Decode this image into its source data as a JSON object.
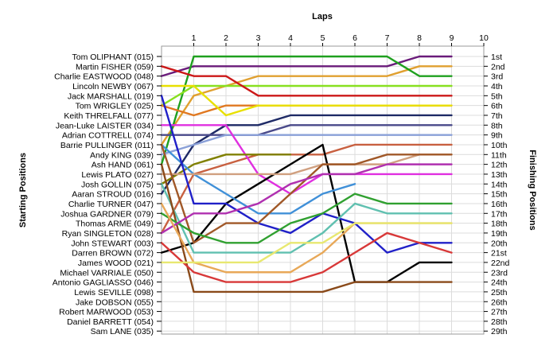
{
  "chart_data": {
    "type": "line",
    "title": "",
    "xlabel": "Laps",
    "ylabel_left": "Starting Positions",
    "ylabel_right": "Finishing Positions",
    "laps": [
      "1",
      "2",
      "3",
      "4",
      "5",
      "6",
      "7",
      "8",
      "9",
      "10"
    ],
    "xlim": [
      0,
      10
    ],
    "ylim": [
      1,
      29
    ],
    "grid": true,
    "starting_grid": [
      "Tom OLIPHANT (015)",
      "Martin FISHER (059)",
      "Charlie EASTWOOD (048)",
      "Lincoln NEWBY (067)",
      "Jack MARSHALL (019)",
      "Tom WRIGLEY (025)",
      "Keith THRELFALL (077)",
      "Jean-Luke LAISTER (034)",
      "Adrian COTTRELL (074)",
      "Barrie PULLINGER (011)",
      "Andy KING (039)",
      "Ash HAND (061)",
      "Lewis PLATO (027)",
      "Josh GOLLIN (075)",
      "Aaran STROUD (016)",
      "Charlie TURNER (047)",
      "Joshua GARDNER (079)",
      "Thomas ARME (049)",
      "Ryan SINGLETON (028)",
      "John STEWART (003)",
      "Darren BROWN (072)",
      "James WOOD (021)",
      "Michael VARRIALE (050)",
      "Antonio GAGLIASSO (046)",
      "Lewis SEVILLE (098)",
      "Jake DOBSON (055)",
      "Robert MARWOOD (053)",
      "Daniel BARRETT (054)",
      "Sam LANE (035)"
    ],
    "finishing_positions": [
      "1st",
      "2nd",
      "3rd",
      "4th",
      "5th",
      "6th",
      "7th",
      "8th",
      "9th",
      "10th",
      "11th",
      "12th",
      "13th",
      "14th",
      "15th",
      "16th",
      "17th",
      "18th",
      "19th",
      "20th",
      "21st",
      "22nd",
      "23rd",
      "24th",
      "25th",
      "26th",
      "27th",
      "28th",
      "29th"
    ],
    "series": [
      {
        "color": "#6a1b7a",
        "values": [
          3,
          2,
          2,
          2,
          2,
          2,
          2,
          2,
          1,
          1
        ]
      },
      {
        "color": "#e0a030",
        "values": [
          10,
          5,
          4,
          3,
          3,
          3,
          3,
          3,
          2,
          2
        ]
      },
      {
        "color": "#1fa01f",
        "values": [
          12,
          1,
          1,
          1,
          1,
          1,
          1,
          1,
          3,
          3
        ]
      },
      {
        "color": "#88e020",
        "values": [
          6,
          4,
          4,
          4,
          4,
          4,
          4,
          4,
          4,
          4
        ]
      },
      {
        "color": "#cc1818",
        "values": [
          2,
          3,
          3,
          5,
          5,
          5,
          5,
          5,
          5,
          5
        ]
      },
      {
        "color": "#e07820",
        "values": [
          6,
          7,
          6,
          6,
          6,
          6,
          6,
          6,
          6,
          6
        ]
      },
      {
        "color": "#e8e000",
        "values": [
          4,
          4,
          7,
          6,
          6,
          6,
          6,
          6,
          6,
          6
        ]
      },
      {
        "color": "#1e2a66",
        "values": [
          15,
          10,
          8,
          8,
          7,
          7,
          7,
          7,
          7,
          7
        ]
      },
      {
        "color": "#4a4a8a",
        "values": [
          9,
          9,
          9,
          9,
          8,
          8,
          8,
          8,
          8,
          8
        ]
      },
      {
        "color": "#8aa0d8",
        "values": [
          11,
          10,
          9,
          9,
          9,
          9,
          9,
          9,
          9,
          9
        ]
      },
      {
        "color": "#c86040",
        "values": [
          19,
          13,
          12,
          11,
          11,
          11,
          10,
          10,
          10,
          10
        ]
      },
      {
        "color": "#e030e0",
        "values": [
          8,
          8,
          8,
          13,
          15,
          13,
          13,
          13,
          13,
          13
        ]
      },
      {
        "color": "#808000",
        "values": [
          14,
          12,
          11,
          11,
          11,
          null,
          null,
          null,
          null,
          null
        ]
      },
      {
        "color": "#000000",
        "values": [
          21,
          20,
          16,
          14,
          12,
          10,
          24,
          24,
          22,
          22
        ]
      },
      {
        "color": "#4090d8",
        "values": [
          10,
          13,
          15,
          17,
          17,
          15,
          14,
          null,
          null,
          null
        ]
      },
      {
        "color": "#d0a080",
        "values": [
          13,
          13,
          13,
          13,
          13,
          12,
          12,
          12,
          11,
          11
        ]
      },
      {
        "color": "#2020c8",
        "values": [
          5,
          16,
          16,
          18,
          19,
          17,
          18,
          21,
          20,
          20
        ]
      },
      {
        "color": "#a05828",
        "values": [
          10,
          20,
          18,
          18,
          15,
          12,
          12,
          11,
          11,
          11
        ]
      },
      {
        "color": "#60c0b0",
        "values": [
          14,
          21,
          21,
          21,
          21,
          19,
          16,
          17,
          17,
          17
        ]
      },
      {
        "color": "#8a4a1a",
        "values": [
          12,
          25,
          25,
          25,
          25,
          25,
          24,
          24,
          24,
          24
        ]
      },
      {
        "color": "#d83838",
        "values": [
          20,
          23,
          24,
          24,
          24,
          23,
          21,
          19,
          20,
          21
        ]
      },
      {
        "color": "#30a030",
        "values": [
          17,
          19,
          20,
          20,
          18,
          17,
          15,
          16,
          16,
          16
        ]
      },
      {
        "color": "#b030b0",
        "values": [
          19,
          17,
          17,
          16,
          14,
          13,
          13,
          12,
          12,
          12
        ]
      },
      {
        "color": "#e8a858",
        "values": [
          16,
          22,
          23,
          23,
          23,
          21,
          18,
          18,
          18,
          18
        ]
      },
      {
        "color": "#e8e870",
        "values": [
          22,
          22,
          22,
          22,
          20,
          20,
          18,
          18,
          18,
          18
        ]
      }
    ]
  }
}
